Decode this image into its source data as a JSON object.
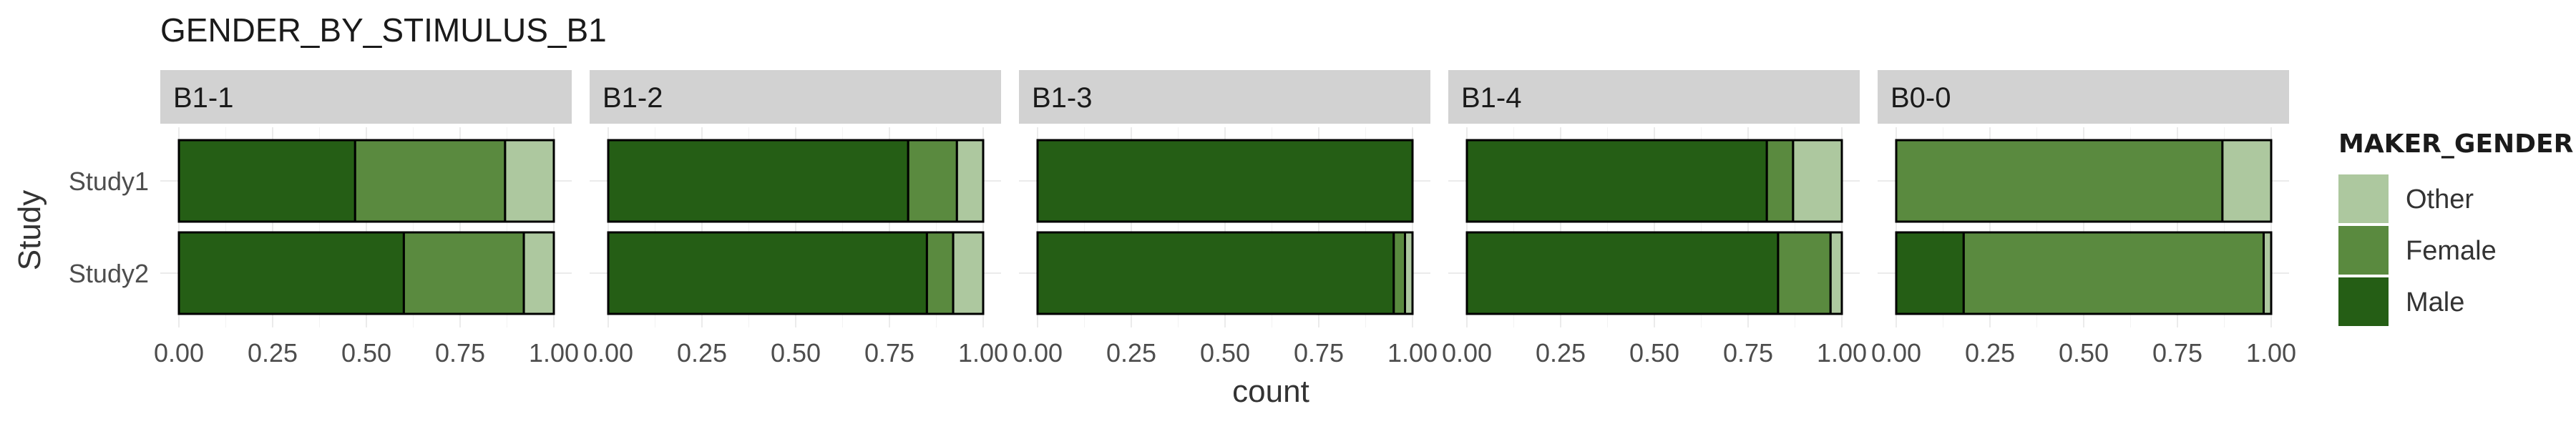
{
  "chart_data": {
    "type": "bar",
    "orientation": "horizontal",
    "stacked": true,
    "title": "GENDER_BY_STIMULUS_B1",
    "xlabel": "count",
    "ylabel": "Study",
    "xlim": [
      0,
      1
    ],
    "x_ticks": [
      "0.00",
      "0.25",
      "0.50",
      "0.75",
      "1.00"
    ],
    "categories": [
      "Study1",
      "Study2"
    ],
    "stack_order": [
      "Male",
      "Female",
      "Other"
    ],
    "legend": {
      "title": "MAKER_GENDER",
      "position": "right",
      "entries": [
        "Other",
        "Female",
        "Male"
      ]
    },
    "colors": {
      "Male": "#255e15",
      "Female": "#5a8a3f",
      "Other": "#adc89f"
    },
    "grid": true,
    "panels": [
      {
        "label": "B1-1",
        "Study1": {
          "Male": 0.47,
          "Female": 0.4,
          "Other": 0.13
        },
        "Study2": {
          "Male": 0.6,
          "Female": 0.32,
          "Other": 0.08
        }
      },
      {
        "label": "B1-2",
        "Study1": {
          "Male": 0.8,
          "Female": 0.13,
          "Other": 0.07
        },
        "Study2": {
          "Male": 0.85,
          "Female": 0.07,
          "Other": 0.08
        }
      },
      {
        "label": "B1-3",
        "Study1": {
          "Male": 1.0,
          "Female": 0.0,
          "Other": 0.0
        },
        "Study2": {
          "Male": 0.95,
          "Female": 0.03,
          "Other": 0.02
        }
      },
      {
        "label": "B1-4",
        "Study1": {
          "Male": 0.8,
          "Female": 0.07,
          "Other": 0.13
        },
        "Study2": {
          "Male": 0.83,
          "Female": 0.14,
          "Other": 0.03
        }
      },
      {
        "label": "B0-0",
        "Study1": {
          "Male": 0.0,
          "Female": 0.87,
          "Other": 0.13
        },
        "Study2": {
          "Male": 0.18,
          "Female": 0.8,
          "Other": 0.02
        }
      }
    ]
  }
}
